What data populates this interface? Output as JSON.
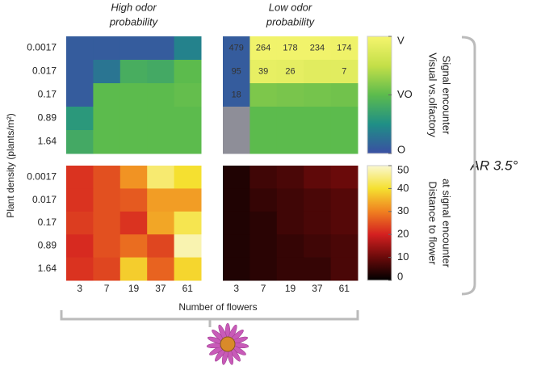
{
  "chart_data": {
    "type": "heatmap",
    "x_label": "Number of flowers",
    "y_label": "Plant density (plants/m²)",
    "x": [
      "3",
      "7",
      "19",
      "37",
      "61"
    ],
    "y": [
      "0.0017",
      "0.017",
      "0.17",
      "0.89",
      "1.64"
    ],
    "columns": [
      [
        "High odor",
        "probability"
      ],
      [
        "Low odor",
        "probability"
      ]
    ],
    "annotation": "AR 3.5°",
    "rows": [
      {
        "colorbar": {
          "label": [
            "Visual vs.olfactory",
            "Signal encounter"
          ],
          "clim": [
            0,
            1
          ],
          "ticks": [
            {
              "value": 0,
              "label": "O"
            },
            {
              "value": 0.5,
              "label": "VO"
            },
            {
              "value": 1,
              "label": "V"
            }
          ],
          "colormap": [
            "#3a4fa3",
            "#1f8f86",
            "#5cbb4d",
            "#c4df48",
            "#f5f56e"
          ]
        },
        "panels": [
          {
            "values": [
              [
                0.05,
                0.05,
                0.05,
                0.05,
                0.2
              ],
              [
                0.05,
                0.15,
                0.42,
                0.4,
                0.5
              ],
              [
                0.05,
                0.5,
                0.5,
                0.5,
                0.52
              ],
              [
                0.3,
                0.5,
                0.5,
                0.5,
                0.5
              ],
              [
                0.4,
                0.5,
                0.5,
                0.5,
                0.5
              ]
            ]
          },
          {
            "values": [
              [
                0.05,
                0.98,
                0.98,
                0.98,
                0.97
              ],
              [
                0.05,
                0.93,
                0.92,
                0.9,
                0.9
              ],
              [
                0.05,
                0.58,
                0.57,
                0.56,
                0.55
              ],
              [
                null,
                0.5,
                0.5,
                0.5,
                0.5
              ],
              [
                null,
                0.5,
                0.5,
                0.5,
                0.5
              ]
            ],
            "null_color": "#8e8e98",
            "counts": [
              [
                479,
                264,
                178,
                234,
                174
              ],
              [
                95,
                39,
                26,
                null,
                7
              ],
              [
                18,
                null,
                null,
                null,
                null
              ],
              [
                null,
                null,
                null,
                null,
                null
              ],
              [
                null,
                null,
                null,
                null,
                null
              ]
            ]
          }
        ]
      },
      {
        "colorbar": {
          "label": [
            "Distance to flower",
            "at signal encounter"
          ],
          "clim": [
            0,
            50
          ],
          "ticks": [
            0,
            10,
            20,
            30,
            40,
            50
          ],
          "colormap": [
            "#000000",
            "#6a0a0a",
            "#d42020",
            "#f08020",
            "#f5e030",
            "#faf8d0"
          ]
        },
        "panels": [
          {
            "values": [
              [
                22,
                25,
                32,
                44,
                40
              ],
              [
                22,
                25,
                26,
                33,
                33
              ],
              [
                23,
                25,
                22,
                34,
                42
              ],
              [
                21,
                25,
                28,
                24,
                48
              ],
              [
                22,
                24,
                38,
                27,
                39
              ]
            ]
          },
          {
            "values": [
              [
                3,
                6,
                7,
                9,
                10
              ],
              [
                3,
                5,
                6,
                7,
                8
              ],
              [
                3,
                4,
                6,
                7,
                8
              ],
              [
                3,
                4,
                5,
                6,
                7
              ],
              [
                3,
                4,
                5,
                5,
                7
              ]
            ]
          }
        ]
      }
    ]
  }
}
